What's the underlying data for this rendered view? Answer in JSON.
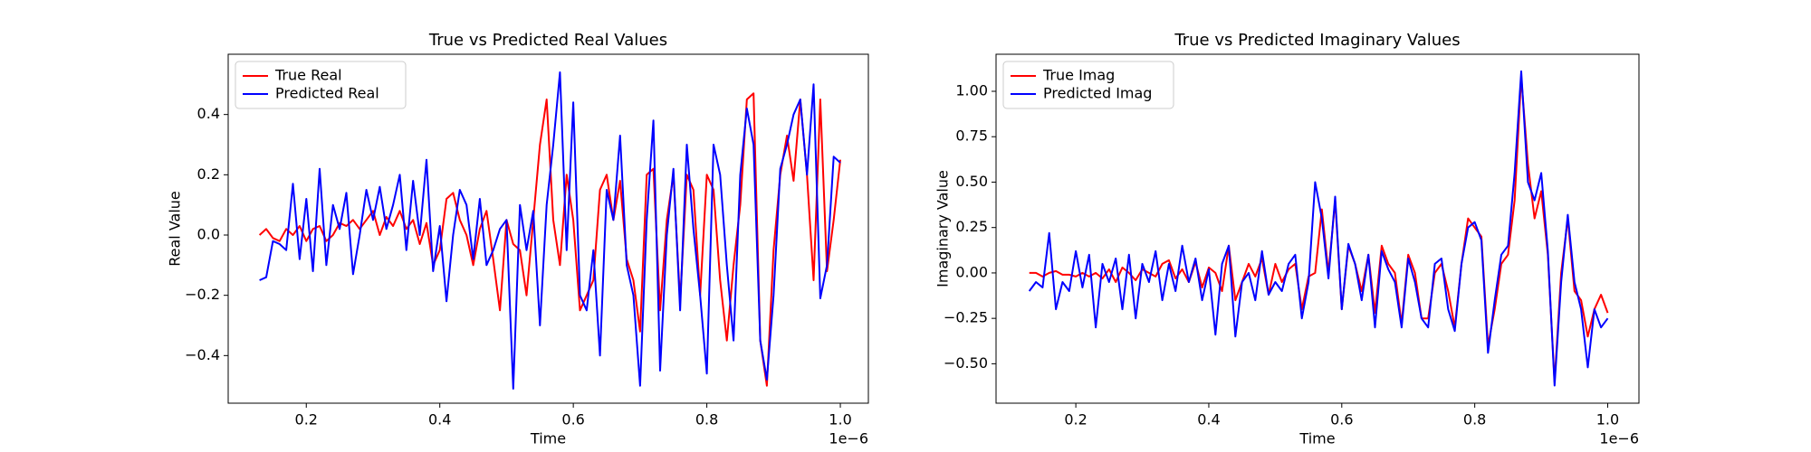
{
  "chart_data": [
    {
      "type": "line",
      "title": "True vs Predicted Real Values",
      "xlabel": "Time",
      "ylabel": "Real Value",
      "x_offset_label": "1e−6",
      "legend": "upper left",
      "x": [
        0.13,
        0.14,
        0.15,
        0.16,
        0.17,
        0.18,
        0.19,
        0.2,
        0.21,
        0.22,
        0.23,
        0.24,
        0.25,
        0.26,
        0.27,
        0.28,
        0.29,
        0.3,
        0.31,
        0.32,
        0.33,
        0.34,
        0.35,
        0.36,
        0.37,
        0.38,
        0.39,
        0.4,
        0.41,
        0.42,
        0.43,
        0.44,
        0.45,
        0.46,
        0.47,
        0.48,
        0.49,
        0.5,
        0.51,
        0.52,
        0.53,
        0.54,
        0.55,
        0.56,
        0.57,
        0.58,
        0.59,
        0.6,
        0.61,
        0.62,
        0.63,
        0.64,
        0.65,
        0.66,
        0.67,
        0.68,
        0.69,
        0.7,
        0.71,
        0.72,
        0.73,
        0.74,
        0.75,
        0.76,
        0.77,
        0.78,
        0.79,
        0.8,
        0.81,
        0.82,
        0.83,
        0.84,
        0.85,
        0.86,
        0.87,
        0.88,
        0.89,
        0.9,
        0.91,
        0.92,
        0.93,
        0.94,
        0.95,
        0.96,
        0.97,
        0.98,
        0.99,
        1.0
      ],
      "series": [
        {
          "name": "True Real",
          "color": "#ff0000",
          "values": [
            0.0,
            0.02,
            -0.01,
            -0.02,
            0.02,
            0.0,
            0.03,
            -0.02,
            0.02,
            0.03,
            -0.02,
            0.0,
            0.04,
            0.03,
            0.05,
            0.02,
            0.05,
            0.08,
            0.0,
            0.06,
            0.03,
            0.08,
            0.02,
            0.05,
            -0.03,
            0.04,
            -0.1,
            -0.05,
            0.12,
            0.14,
            0.05,
            0.0,
            -0.1,
            0.02,
            0.08,
            -0.08,
            -0.25,
            0.05,
            -0.03,
            -0.05,
            -0.2,
            0.05,
            0.3,
            0.45,
            0.05,
            -0.1,
            0.2,
            0.05,
            -0.25,
            -0.2,
            -0.15,
            0.15,
            0.2,
            0.05,
            0.18,
            -0.08,
            -0.15,
            -0.32,
            0.2,
            0.22,
            -0.25,
            0.05,
            0.2,
            -0.22,
            0.2,
            0.15,
            -0.2,
            0.2,
            0.15,
            -0.15,
            -0.35,
            -0.1,
            0.1,
            0.45,
            0.47,
            -0.35,
            -0.5,
            -0.05,
            0.2,
            0.33,
            0.18,
            0.45,
            0.2,
            -0.15,
            0.45,
            -0.12,
            0.05,
            0.25
          ]
        },
        {
          "name": "Predicted Real",
          "color": "#0000ff",
          "values": [
            -0.15,
            -0.14,
            -0.02,
            -0.03,
            -0.05,
            0.17,
            -0.08,
            0.12,
            -0.12,
            0.22,
            -0.1,
            0.1,
            0.02,
            0.14,
            -0.13,
            0.0,
            0.15,
            0.05,
            0.16,
            0.02,
            0.1,
            0.2,
            -0.05,
            0.18,
            0.0,
            0.25,
            -0.12,
            0.03,
            -0.22,
            0.0,
            0.15,
            0.1,
            -0.08,
            0.12,
            -0.1,
            -0.05,
            0.02,
            0.05,
            -0.51,
            0.1,
            -0.05,
            0.08,
            -0.3,
            0.1,
            0.3,
            0.54,
            -0.05,
            0.44,
            -0.2,
            -0.25,
            -0.05,
            -0.4,
            0.15,
            0.05,
            0.33,
            -0.1,
            -0.2,
            -0.5,
            0.05,
            0.38,
            -0.45,
            0.0,
            0.22,
            -0.25,
            0.3,
            0.02,
            -0.2,
            -0.46,
            0.3,
            0.2,
            -0.1,
            -0.35,
            0.2,
            0.42,
            0.3,
            -0.35,
            -0.48,
            -0.2,
            0.22,
            0.3,
            0.4,
            0.45,
            0.2,
            0.5,
            -0.21,
            -0.1,
            0.26,
            0.24
          ]
        }
      ],
      "xlim": [
        0.083,
        1.042
      ],
      "ylim": [
        -0.558,
        0.6
      ],
      "xticks": [
        0.2,
        0.4,
        0.6,
        0.8,
        {
          "value": 1,
          "label": "1.0"
        }
      ],
      "yticks": [
        {
          "value": -0.4,
          "label": "−0.4"
        },
        {
          "value": -0.2,
          "label": "−0.2"
        },
        {
          "value": 0,
          "label": "0.0"
        },
        0.2,
        0.4
      ]
    },
    {
      "type": "line",
      "title": "True vs Predicted Imaginary Values",
      "xlabel": "Time",
      "ylabel": "Imaginary Value",
      "x_offset_label": "1e−6",
      "legend": "upper left",
      "x": [
        0.13,
        0.14,
        0.15,
        0.16,
        0.17,
        0.18,
        0.19,
        0.2,
        0.21,
        0.22,
        0.23,
        0.24,
        0.25,
        0.26,
        0.27,
        0.28,
        0.29,
        0.3,
        0.31,
        0.32,
        0.33,
        0.34,
        0.35,
        0.36,
        0.37,
        0.38,
        0.39,
        0.4,
        0.41,
        0.42,
        0.43,
        0.44,
        0.45,
        0.46,
        0.47,
        0.48,
        0.49,
        0.5,
        0.51,
        0.52,
        0.53,
        0.54,
        0.55,
        0.56,
        0.57,
        0.58,
        0.59,
        0.6,
        0.61,
        0.62,
        0.63,
        0.64,
        0.65,
        0.66,
        0.67,
        0.68,
        0.69,
        0.7,
        0.71,
        0.72,
        0.73,
        0.74,
        0.75,
        0.76,
        0.77,
        0.78,
        0.79,
        0.8,
        0.81,
        0.82,
        0.83,
        0.84,
        0.85,
        0.86,
        0.87,
        0.88,
        0.89,
        0.9,
        0.91,
        0.92,
        0.93,
        0.94,
        0.95,
        0.96,
        0.97,
        0.98,
        0.99,
        1.0
      ],
      "series": [
        {
          "name": "True Imag",
          "color": "#ff0000",
          "values": [
            0.0,
            0.0,
            -0.02,
            0.0,
            0.01,
            -0.01,
            -0.01,
            -0.02,
            0.0,
            -0.02,
            0.0,
            -0.03,
            0.02,
            -0.05,
            0.03,
            0.0,
            -0.04,
            0.02,
            0.0,
            -0.02,
            0.05,
            0.07,
            -0.03,
            0.02,
            -0.05,
            0.06,
            -0.08,
            0.03,
            0.0,
            -0.1,
            0.15,
            -0.15,
            -0.05,
            0.05,
            -0.02,
            0.08,
            -0.12,
            0.05,
            -0.05,
            0.02,
            0.05,
            -0.2,
            -0.02,
            0.0,
            0.35,
            0.0,
            0.4,
            -0.2,
            0.15,
            0.05,
            -0.1,
            0.1,
            -0.22,
            0.15,
            0.05,
            0.0,
            -0.28,
            0.1,
            0.0,
            -0.25,
            -0.25,
            0.0,
            0.05,
            -0.1,
            -0.3,
            0.05,
            0.3,
            0.25,
            0.2,
            -0.4,
            -0.2,
            0.05,
            0.1,
            0.4,
            1.08,
            0.6,
            0.3,
            0.45,
            0.1,
            -0.6,
            0.0,
            0.3,
            -0.1,
            -0.15,
            -0.35,
            -0.2,
            -0.12,
            -0.22
          ]
        },
        {
          "name": "Predicted Imag",
          "color": "#0000ff",
          "values": [
            -0.1,
            -0.05,
            -0.08,
            0.22,
            -0.2,
            -0.05,
            -0.1,
            0.12,
            -0.08,
            0.1,
            -0.3,
            0.05,
            -0.05,
            0.08,
            -0.2,
            0.1,
            -0.25,
            0.05,
            -0.05,
            0.12,
            -0.15,
            0.05,
            -0.1,
            0.15,
            -0.05,
            0.08,
            -0.15,
            0.02,
            -0.34,
            0.05,
            0.15,
            -0.35,
            -0.05,
            0.0,
            -0.15,
            0.12,
            -0.12,
            -0.05,
            -0.1,
            0.05,
            0.1,
            -0.25,
            -0.05,
            0.5,
            0.3,
            -0.03,
            0.42,
            -0.2,
            0.16,
            0.05,
            -0.15,
            0.1,
            -0.3,
            0.12,
            0.02,
            -0.05,
            -0.3,
            0.08,
            -0.05,
            -0.25,
            -0.3,
            0.05,
            0.08,
            -0.2,
            -0.32,
            0.05,
            0.25,
            0.28,
            0.18,
            -0.44,
            -0.15,
            0.1,
            0.15,
            0.55,
            1.11,
            0.5,
            0.4,
            0.55,
            0.12,
            -0.62,
            -0.05,
            0.32,
            -0.05,
            -0.2,
            -0.52,
            -0.2,
            -0.3,
            -0.25
          ]
        }
      ],
      "xlim": [
        0.08,
        1.047
      ],
      "ylim": [
        -0.717,
        1.204
      ],
      "xticks": [
        0.2,
        0.4,
        0.6,
        0.8,
        {
          "value": 1,
          "label": "1.0"
        }
      ],
      "yticks": [
        {
          "value": -0.5,
          "label": "−0.50"
        },
        {
          "value": -0.25,
          "label": "−0.25"
        },
        {
          "value": 0,
          "label": "0.00"
        },
        {
          "value": 0.25,
          "label": "0.25"
        },
        {
          "value": 0.5,
          "label": "0.50"
        },
        {
          "value": 0.75,
          "label": "0.75"
        },
        {
          "value": 1,
          "label": "1.00"
        }
      ]
    }
  ]
}
